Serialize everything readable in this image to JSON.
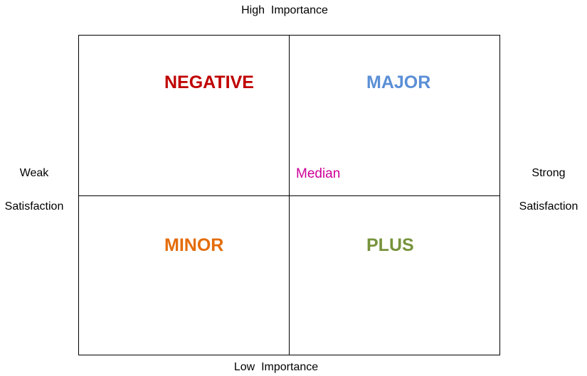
{
  "axes": {
    "top": "High  Importance",
    "bottom": "Low  Importance",
    "left": [
      "Weak",
      "Satisfaction"
    ],
    "right": [
      "Strong",
      "Satisfaction"
    ]
  },
  "quadrants": {
    "top_left": {
      "label": "NEGATIVE",
      "color": "#C00000"
    },
    "top_right": {
      "label": "MAJOR",
      "color": "#5B8FD6"
    },
    "bottom_left": {
      "label": "MINOR",
      "color": "#E46C0A"
    },
    "bottom_right": {
      "label": "PLUS",
      "color": "#77933C"
    }
  },
  "median": {
    "label": "Median",
    "color": "#CC0099"
  }
}
